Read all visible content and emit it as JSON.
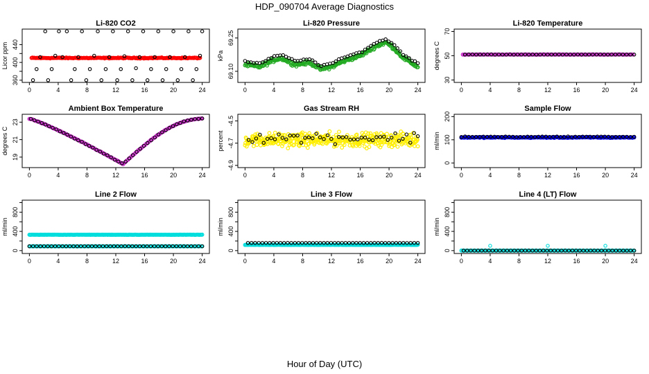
{
  "page": {
    "title": "HDP_090704  Average Diagnostics",
    "x_caption": "Hour of Day (UTC)"
  },
  "chart_data": [
    {
      "type": "scatter",
      "title": "Li-820 CO2",
      "ylabel": "Licor ppm",
      "xlim": [
        -1,
        25
      ],
      "ylim": [
        355,
        475
      ],
      "xticks": [
        0,
        4,
        8,
        12,
        16,
        20,
        24
      ],
      "yticks": [
        360,
        380,
        400,
        420,
        440
      ],
      "yticklabels": [
        "360",
        "",
        "400",
        "",
        "440"
      ],
      "series": [
        {
          "name": "main",
          "color": "#ff0000",
          "style": "band",
          "y_func": "flat",
          "base": 410,
          "amp": 0,
          "noise": 1.5,
          "n": 190,
          "x_from": 0.3,
          "x_to": 23.7
        },
        {
          "name": "outliers",
          "color": "#000000",
          "style": "ring",
          "x_from": 0.5,
          "x_to": 24,
          "points": [
            [
              0.5,
              360
            ],
            [
              1.0,
              385
            ],
            [
              1.5,
              412
            ],
            [
              2.2,
              470
            ],
            [
              2.6,
              360
            ],
            [
              3.1,
              385
            ],
            [
              3.6,
              415
            ],
            [
              4.1,
              470
            ],
            [
              4.6,
              412
            ],
            [
              5.2,
              470
            ],
            [
              5.8,
              360
            ],
            [
              6.3,
              385
            ],
            [
              6.8,
              412
            ],
            [
              7.3,
              470
            ],
            [
              7.9,
              360
            ],
            [
              8.4,
              385
            ],
            [
              9.0,
              415
            ],
            [
              9.5,
              470
            ],
            [
              10.0,
              360
            ],
            [
              10.6,
              385
            ],
            [
              11.1,
              412
            ],
            [
              11.6,
              470
            ],
            [
              12.2,
              360
            ],
            [
              12.7,
              385
            ],
            [
              13.2,
              414
            ],
            [
              13.7,
              470
            ],
            [
              14.3,
              360
            ],
            [
              14.8,
              387
            ],
            [
              15.3,
              412
            ],
            [
              15.8,
              470
            ],
            [
              16.4,
              360
            ],
            [
              16.9,
              385
            ],
            [
              17.4,
              412
            ],
            [
              17.9,
              470
            ],
            [
              18.5,
              360
            ],
            [
              19.0,
              385
            ],
            [
              19.5,
              412
            ],
            [
              20.0,
              470
            ],
            [
              20.6,
              360
            ],
            [
              21.1,
              385
            ],
            [
              21.6,
              412
            ],
            [
              22.1,
              470
            ],
            [
              22.7,
              360
            ],
            [
              23.2,
              385
            ],
            [
              23.7,
              415
            ],
            [
              24.0,
              470
            ]
          ]
        }
      ]
    },
    {
      "type": "scatter",
      "title": "Li-820 Pressure",
      "ylabel": "kPa",
      "xlim": [
        -1,
        25
      ],
      "ylim": [
        69.05,
        69.29
      ],
      "xticks": [
        0,
        4,
        8,
        12,
        16,
        20,
        24
      ],
      "yticks": [
        69.1,
        69.25
      ],
      "yticklabels": [
        "69.10",
        "69.25"
      ],
      "series": [
        {
          "name": "main",
          "color": "#22aa22",
          "style": "band",
          "y_func": "pressure",
          "noise": 0.012,
          "n": 260,
          "x_from": 0,
          "x_to": 24
        },
        {
          "name": "marks",
          "color": "#000000",
          "style": "ring",
          "y_func": "pressure_hi",
          "noise": 0.005,
          "n": 60,
          "x_from": 0,
          "x_to": 24
        }
      ]
    },
    {
      "type": "scatter",
      "title": "Li-820 Temperature",
      "ylabel": "degrees C",
      "xlim": [
        -1,
        25
      ],
      "ylim": [
        28,
        72
      ],
      "xticks": [
        0,
        4,
        8,
        12,
        16,
        20,
        24
      ],
      "yticks": [
        30,
        50,
        70
      ],
      "yticklabels": [
        "30",
        "50",
        "70"
      ],
      "series": [
        {
          "name": "main",
          "color": "#cc33cc",
          "style": "band",
          "y_func": "flat",
          "base": 51,
          "amp": 0,
          "noise": 0.2,
          "n": 190,
          "x_from": 0.2,
          "x_to": 23.8
        },
        {
          "name": "marks",
          "color": "#000000",
          "style": "ring",
          "y_func": "flat",
          "base": 51,
          "amp": 0,
          "noise": 0.1,
          "n": 46,
          "x_from": 0.5,
          "x_to": 24
        }
      ]
    },
    {
      "type": "scatter",
      "title": "Ambient Box Temperature",
      "ylabel": "degrees C",
      "xlim": [
        -1,
        25
      ],
      "ylim": [
        17.8,
        23.9
      ],
      "xticks": [
        0,
        4,
        8,
        12,
        16,
        20,
        24
      ],
      "yticks": [
        19,
        21,
        23
      ],
      "yticklabels": [
        "19",
        "21",
        "23"
      ],
      "series": [
        {
          "name": "main",
          "color": "#cc33cc",
          "style": "band",
          "y_func": "ambient",
          "noise": 0.06,
          "n": 220,
          "x_from": 0,
          "x_to": 24
        },
        {
          "name": "marks",
          "color": "#000000",
          "style": "ring",
          "y_func": "ambient",
          "noise": 0.05,
          "n": 48,
          "x_from": 0.2,
          "x_to": 24
        }
      ]
    },
    {
      "type": "scatter",
      "title": "Gas Stream RH",
      "ylabel": "percent",
      "xlim": [
        -1,
        25
      ],
      "ylim": [
        -4.92,
        -4.44
      ],
      "xticks": [
        0,
        4,
        8,
        12,
        16,
        20,
        24
      ],
      "yticks": [
        -4.9,
        -4.7,
        -4.5
      ],
      "yticklabels": [
        "-4.9",
        "-4.7",
        "-4.5"
      ],
      "series": [
        {
          "name": "main",
          "color": "#ffee00",
          "style": "band",
          "y_func": "flat",
          "base": -4.67,
          "amp": 0,
          "noise": 0.09,
          "n": 420,
          "x_from": 0,
          "x_to": 24
        },
        {
          "name": "marks",
          "color": "#000000",
          "style": "ring",
          "y_func": "flat",
          "base": -4.65,
          "amp": 0,
          "noise": 0.07,
          "n": 46,
          "x_from": 0.5,
          "x_to": 24
        }
      ]
    },
    {
      "type": "scatter",
      "title": "Sample Flow",
      "ylabel": "ml/min",
      "xlim": [
        -1,
        25
      ],
      "ylim": [
        -20,
        210
      ],
      "xticks": [
        0,
        4,
        8,
        12,
        16,
        20,
        24
      ],
      "yticks": [
        0,
        100,
        200
      ],
      "yticklabels": [
        "0",
        "100",
        "200"
      ],
      "series": [
        {
          "name": "main",
          "color": "#0000dd",
          "style": "band",
          "y_func": "flat",
          "base": 110,
          "amp": 0,
          "noise": 3,
          "n": 200,
          "x_from": 0,
          "x_to": 24
        },
        {
          "name": "marks",
          "color": "#000000",
          "style": "ring",
          "y_func": "flat",
          "base": 113,
          "amp": 0,
          "noise": 2,
          "n": 48,
          "x_from": 0,
          "x_to": 24
        }
      ]
    },
    {
      "type": "scatter",
      "title": "Line 2 Flow",
      "ylabel": "ml/min",
      "xlim": [
        -1,
        25
      ],
      "ylim": [
        -60,
        1050
      ],
      "xticks": [
        0,
        4,
        8,
        12,
        16,
        20,
        24
      ],
      "yticks": [
        0,
        200,
        400,
        600,
        800,
        1000
      ],
      "yticklabels": [
        "0",
        "400",
        "800"
      ],
      "yticklabel_values": [
        0,
        400,
        800
      ],
      "series": [
        {
          "name": "cyan-high",
          "color": "#00dddd",
          "style": "band",
          "y_func": "flat",
          "base": 330,
          "amp": 0,
          "noise": 4,
          "n": 200,
          "x_from": 0,
          "x_to": 24
        },
        {
          "name": "cyan-low",
          "color": "#00dddd",
          "style": "band",
          "y_func": "flat",
          "base": 90,
          "amp": 0,
          "noise": 2,
          "n": 160,
          "x_from": 0,
          "x_to": 24
        },
        {
          "name": "marks",
          "color": "#000000",
          "style": "ring",
          "y_func": "flat",
          "base": 90,
          "amp": 0,
          "noise": 1,
          "n": 48,
          "x_from": 0,
          "x_to": 24
        }
      ]
    },
    {
      "type": "scatter",
      "title": "Line 3 Flow",
      "ylabel": "ml/min",
      "xlim": [
        -1,
        25
      ],
      "ylim": [
        -60,
        1050
      ],
      "xticks": [
        0,
        4,
        8,
        12,
        16,
        20,
        24
      ],
      "yticks": [
        0,
        200,
        400,
        600,
        800,
        1000
      ],
      "yticklabels": [
        "0",
        "400",
        "800"
      ],
      "yticklabel_values": [
        0,
        400,
        800
      ],
      "series": [
        {
          "name": "cyan",
          "color": "#00dddd",
          "style": "band",
          "y_func": "flat",
          "base": 120,
          "amp": 0,
          "noise": 4,
          "n": 200,
          "x_from": 0,
          "x_to": 24
        },
        {
          "name": "marks",
          "color": "#000000",
          "style": "ring",
          "y_func": "flat",
          "base": 160,
          "amp": 0,
          "noise": 1.5,
          "n": 48,
          "x_from": 0.4,
          "x_to": 24
        }
      ]
    },
    {
      "type": "scatter",
      "title": "Line 4 (LT) Flow",
      "ylabel": "ml/min",
      "xlim": [
        -1,
        25
      ],
      "ylim": [
        -60,
        1050
      ],
      "xticks": [
        0,
        4,
        8,
        12,
        16,
        20,
        24
      ],
      "yticks": [
        0,
        200,
        400,
        600,
        800,
        1000
      ],
      "yticklabels": [
        "0",
        "400",
        "800"
      ],
      "yticklabel_values": [
        0,
        400,
        800
      ],
      "series": [
        {
          "name": "cyan",
          "color": "#00dddd",
          "style": "band",
          "y_func": "flat",
          "base": 0,
          "amp": 0,
          "noise": 1.5,
          "n": 160,
          "x_from": 0,
          "x_to": 24
        },
        {
          "name": "marks",
          "color": "#000000",
          "style": "ring",
          "y_func": "flat",
          "base": 0,
          "amp": 0,
          "noise": 1,
          "n": 48,
          "x_from": 0.3,
          "x_to": 24
        },
        {
          "name": "spikes",
          "color": "#00dddd",
          "style": "ring",
          "points": [
            [
              4.0,
              100
            ],
            [
              12.0,
              100
            ],
            [
              20.0,
              100
            ]
          ]
        }
      ]
    }
  ]
}
